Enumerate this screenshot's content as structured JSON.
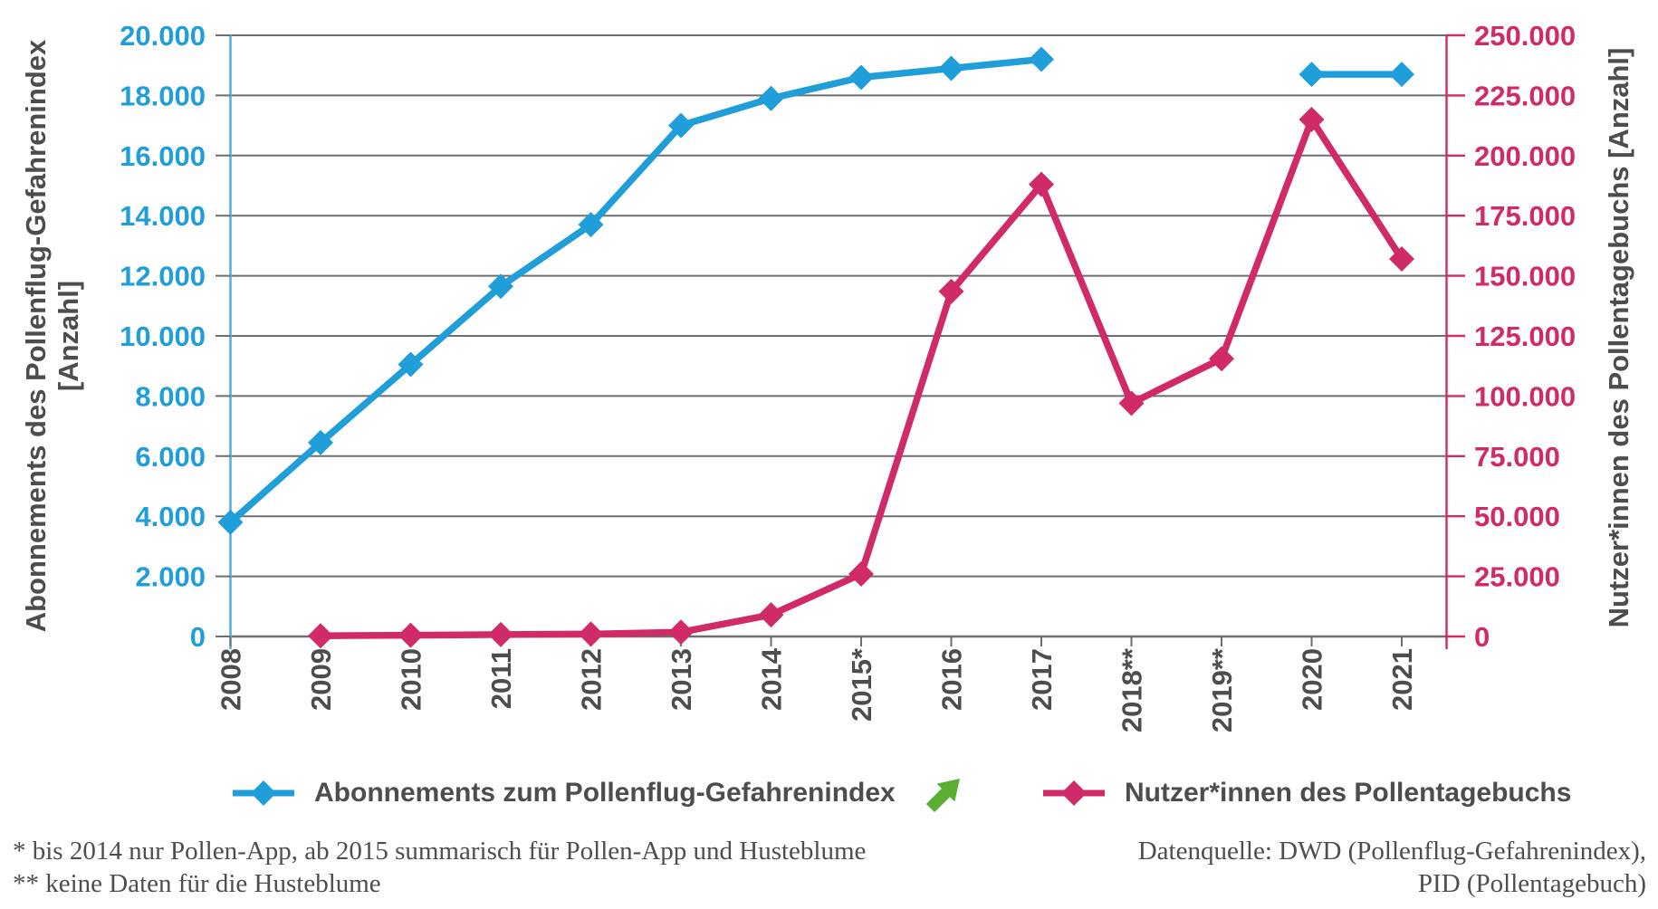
{
  "chart_data": {
    "type": "line",
    "categories": [
      "2008",
      "2009",
      "2010",
      "2011",
      "2012",
      "2013",
      "2014",
      "2015*",
      "2016",
      "2017",
      "2018**",
      "2019**",
      "2020",
      "2021"
    ],
    "series": [
      {
        "name": "Abonnements zum Pollenflug-Gefahrenindex",
        "axis": "left",
        "color": "#1f9ed9",
        "marker": "diamond",
        "values": [
          3800,
          6450,
          9050,
          11650,
          13700,
          17000,
          17900,
          18600,
          18900,
          19200,
          null,
          null,
          18700,
          18700
        ]
      },
      {
        "name": "Nutzer*innen des Pollentagebuchs",
        "axis": "right",
        "color": "#d12a68",
        "marker": "diamond",
        "values": [
          null,
          300,
          500,
          800,
          1000,
          1800,
          9000,
          26000,
          143500,
          188000,
          97000,
          115500,
          215000,
          157000
        ]
      }
    ],
    "left_axis": {
      "title_line1": "Abonnements des Pollenflug-Gefahrenindex",
      "title_line2": "[Anzahl]",
      "min": 0,
      "max": 20000,
      "step": 2000,
      "tick_labels": [
        "0",
        "2.000",
        "4.000",
        "6.000",
        "8.000",
        "10.000",
        "12.000",
        "14.000",
        "16.000",
        "18.000",
        "20.000"
      ],
      "color": "#1f9ed9",
      "line_color": "#55b0e2"
    },
    "right_axis": {
      "title": "Nutzer*innen des Pollentagebuchs [Anzahl]",
      "min": 0,
      "max": 250000,
      "step": 25000,
      "tick_labels": [
        "0",
        "25.000",
        "50.000",
        "75.000",
        "100.000",
        "125.000",
        "150.000",
        "175.000",
        "200.000",
        "225.000",
        "250.000"
      ],
      "color": "#d12a68",
      "line_color": "#d12a68"
    },
    "grid": true,
    "grid_color": "#6e6e6e",
    "text_color": "#4d4d4d",
    "legend_position": "bottom"
  },
  "legend": {
    "items": [
      {
        "label": "Abonnements zum Pollenflug-Gefahrenindex",
        "color": "#1f9ed9"
      },
      {
        "label": "Nutzer*innen des Pollentagebuchs",
        "color": "#d12a68"
      }
    ],
    "trend_arrow_color": "#5bad33"
  },
  "footnotes": {
    "left_line1": "* bis 2014 nur Pollen-App, ab 2015 summarisch für Pollen-App und Husteblume",
    "left_line2": "** keine Daten für die Husteblume",
    "right_line1": "Datenquelle: DWD (Pollenflug-Gefahrenindex),",
    "right_line2": "PID (Pollentagebuch)"
  }
}
